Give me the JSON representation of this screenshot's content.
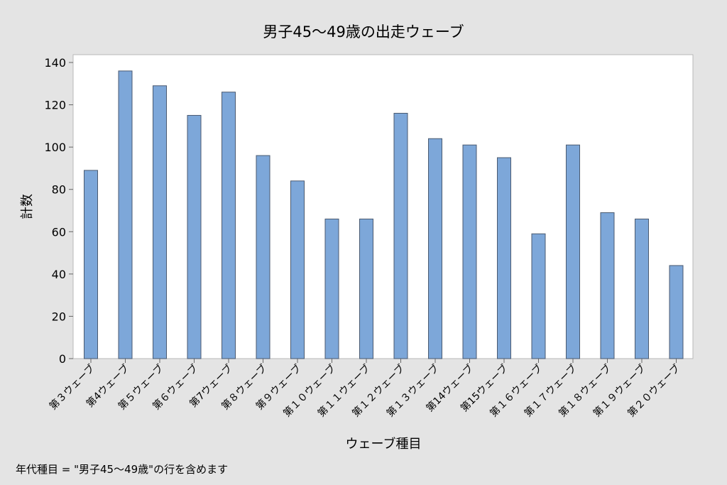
{
  "chart_data": {
    "type": "bar",
    "title": "男子45～49歳の出走ウェーブ",
    "xlabel": "ウェーブ種目",
    "ylabel": "計数",
    "ylim": [
      0,
      140
    ],
    "yticks": [
      0,
      20,
      40,
      60,
      80,
      100,
      120,
      140
    ],
    "categories": [
      "第３ウェーブ",
      "第4ウェーブ",
      "第５ウェーブ",
      "第６ウェーブ",
      "第7ウェーブ",
      "第８ウェーブ",
      "第９ウェーブ",
      "第１０ウェーブ",
      "第１１ウェーブ",
      "第１２ウェーブ",
      "第１３ウェーブ",
      "第14ウェーブ",
      "第15ウェーブ",
      "第１６ウェーブ",
      "第１７ウェーブ",
      "第１８ウェーブ",
      "第１９ウェーブ",
      "第２０ウェーブ"
    ],
    "values": [
      89,
      136,
      129,
      115,
      126,
      96,
      84,
      66,
      66,
      116,
      104,
      101,
      95,
      59,
      101,
      69,
      66,
      44
    ],
    "grid": false,
    "bar_color": "#7da7d9",
    "bar_edge_color": "#4a5a70"
  },
  "footnote": "年代種目 = \"男子45～49歳\"の行を含めます"
}
